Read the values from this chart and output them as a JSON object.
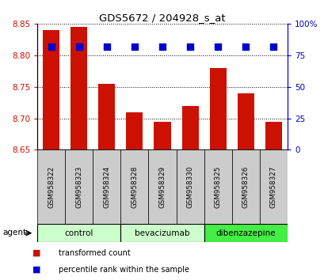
{
  "title": "GDS5672 / 204928_s_at",
  "samples": [
    "GSM958322",
    "GSM958323",
    "GSM958324",
    "GSM958328",
    "GSM958329",
    "GSM958330",
    "GSM958325",
    "GSM958326",
    "GSM958327"
  ],
  "bar_values": [
    8.84,
    8.845,
    8.755,
    8.71,
    8.695,
    8.72,
    8.78,
    8.74,
    8.695
  ],
  "bar_base": 8.65,
  "percentile_values": [
    82,
    82,
    82,
    82,
    82,
    82,
    82,
    82,
    82
  ],
  "bar_color": "#cc1100",
  "dot_color": "#0000cc",
  "ylim_left": [
    8.65,
    8.85
  ],
  "ylim_right": [
    0,
    100
  ],
  "yticks_left": [
    8.65,
    8.7,
    8.75,
    8.8,
    8.85
  ],
  "yticks_right": [
    0,
    25,
    50,
    75,
    100
  ],
  "groups": [
    {
      "label": "control",
      "indices": [
        0,
        1,
        2
      ],
      "color": "#ccffcc"
    },
    {
      "label": "bevacizumab",
      "indices": [
        3,
        4,
        5
      ],
      "color": "#ccffcc"
    },
    {
      "label": "dibenzazepine",
      "indices": [
        6,
        7,
        8
      ],
      "color": "#44ee44"
    }
  ],
  "agent_label": "agent",
  "legend_bar_label": "transformed count",
  "legend_dot_label": "percentile rank within the sample",
  "bar_width": 0.6,
  "dot_size": 28,
  "axis_label_color_left": "#cc1100",
  "axis_label_color_right": "#0000cc",
  "grid_color": "#000000",
  "background_color": "#ffffff",
  "sample_bg_color": "#cccccc"
}
